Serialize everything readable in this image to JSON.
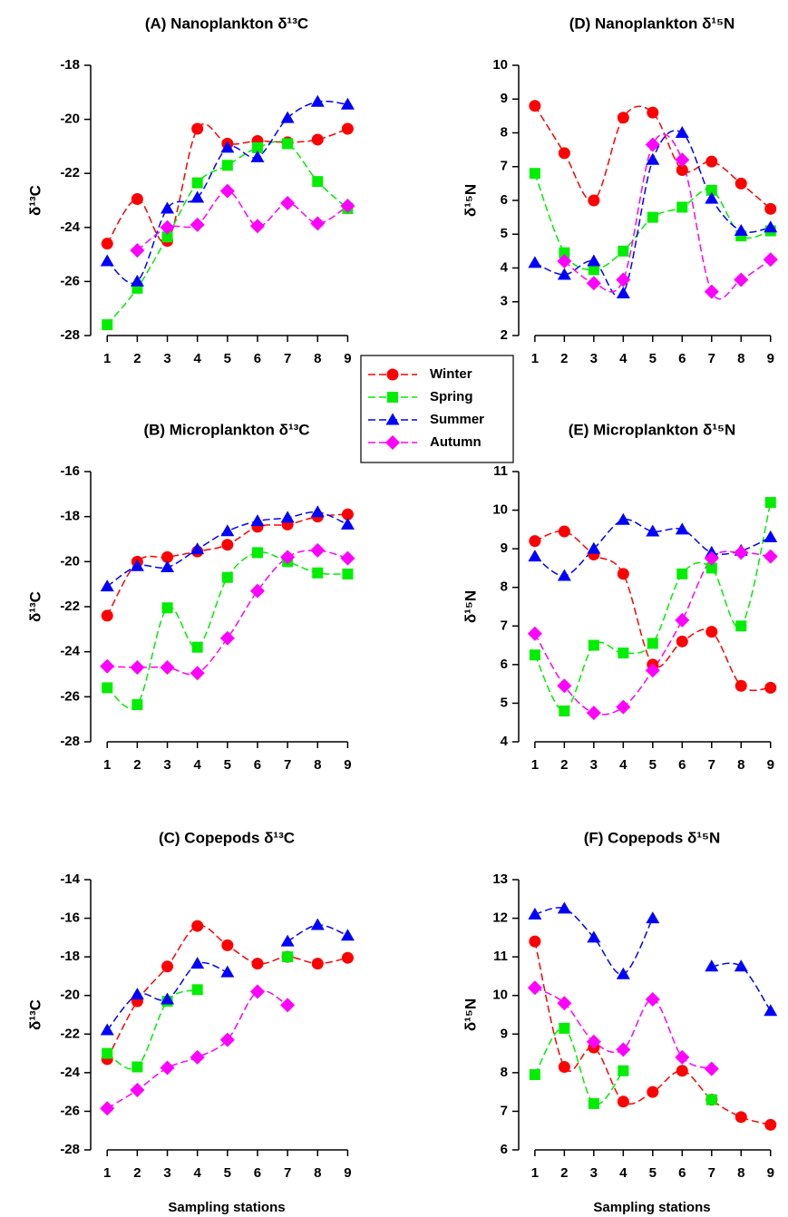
{
  "chart_data": [
    {
      "type": "line",
      "title": "(A) Nanoplankton δ¹³C",
      "ylabel": "δ¹³C",
      "x": [
        1,
        2,
        3,
        4,
        5,
        6,
        7,
        8,
        9
      ],
      "xlim": [
        0.45,
        9.5
      ],
      "xticks": [
        1,
        2,
        3,
        4,
        5,
        6,
        7,
        8,
        9
      ],
      "ylim": [
        -28,
        -18
      ],
      "yticks": [
        -28,
        -26,
        -24,
        -22,
        -20,
        -18
      ],
      "series": [
        {
          "name": "Winter",
          "color": "#ff0000",
          "values": [
            -24.6,
            -22.95,
            -24.5,
            -20.35,
            -20.9,
            -20.8,
            -20.85,
            -20.75,
            -20.35
          ]
        },
        {
          "name": "Spring",
          "color": "#00ee00",
          "values": [
            -27.6,
            -26.25,
            -24.35,
            -22.35,
            -21.7,
            -21.05,
            -20.9,
            -22.3,
            -23.3
          ]
        },
        {
          "name": "Summer",
          "color": "#0000ff",
          "values": [
            -25.25,
            -26.0,
            -23.3,
            -22.9,
            -21.05,
            -21.4,
            -19.95,
            -19.35,
            -19.45
          ]
        },
        {
          "name": "Autumn",
          "color": "#ff00ff",
          "values": [
            null,
            -24.85,
            -24.0,
            -23.9,
            -22.65,
            -23.95,
            -23.1,
            -23.85,
            -23.2
          ]
        }
      ]
    },
    {
      "type": "line",
      "title": "(B) Microplankton δ¹³C",
      "ylabel": "δ¹³C",
      "x": [
        1,
        2,
        3,
        4,
        5,
        6,
        7,
        8,
        9
      ],
      "xlim": [
        0.45,
        9.5
      ],
      "xticks": [
        1,
        2,
        3,
        4,
        5,
        6,
        7,
        8,
        9
      ],
      "ylim": [
        -28,
        -16
      ],
      "yticks": [
        -28,
        -26,
        -24,
        -22,
        -20,
        -18,
        -16
      ],
      "series": [
        {
          "name": "Winter",
          "color": "#ff0000",
          "values": [
            -22.4,
            -20.0,
            -19.8,
            -19.55,
            -19.25,
            -18.45,
            -18.35,
            -18.0,
            -17.9
          ]
        },
        {
          "name": "Spring",
          "color": "#00ee00",
          "values": [
            -25.6,
            -26.35,
            -22.05,
            -23.8,
            -20.7,
            -19.6,
            -20.0,
            -20.5,
            -20.55
          ]
        },
        {
          "name": "Summer",
          "color": "#0000ff",
          "values": [
            -21.1,
            -20.2,
            -20.25,
            -19.45,
            -18.65,
            -18.2,
            -18.05,
            -17.8,
            -18.35
          ]
        },
        {
          "name": "Autumn",
          "color": "#ff00ff",
          "values": [
            -24.65,
            -24.7,
            -24.7,
            -24.95,
            -23.4,
            -21.3,
            -19.8,
            -19.5,
            -19.85
          ]
        }
      ]
    },
    {
      "type": "line",
      "title": "(C) Copepods δ¹³C",
      "ylabel": "δ¹³C",
      "xlabel": "Sampling stations",
      "x": [
        1,
        2,
        3,
        4,
        5,
        6,
        7,
        8,
        9
      ],
      "xlim": [
        0.45,
        9.5
      ],
      "xticks": [
        1,
        2,
        3,
        4,
        5,
        6,
        7,
        8,
        9
      ],
      "ylim": [
        -28,
        -14
      ],
      "yticks": [
        -28,
        -26,
        -24,
        -22,
        -20,
        -18,
        -16,
        -14
      ],
      "series": [
        {
          "name": "Winter",
          "color": "#ff0000",
          "values": [
            -23.3,
            -20.3,
            -18.5,
            -16.4,
            -17.4,
            -18.35,
            -18.0,
            -18.35,
            -18.05
          ]
        },
        {
          "name": "Spring",
          "color": "#00ee00",
          "values": [
            -23.0,
            -23.7,
            -20.3,
            -19.7,
            null,
            null,
            -18.0,
            null,
            null
          ]
        },
        {
          "name": "Summer",
          "color": "#0000ff",
          "values": [
            -21.8,
            -19.95,
            -20.2,
            -18.35,
            -18.8,
            null,
            -17.2,
            -16.35,
            -16.9
          ]
        },
        {
          "name": "Autumn",
          "color": "#ff00ff",
          "values": [
            -25.85,
            -24.9,
            -23.75,
            -23.2,
            -22.3,
            -19.8,
            -20.5,
            null,
            null
          ]
        }
      ]
    },
    {
      "type": "line",
      "title": "(D) Nanoplankton δ¹⁵N",
      "ylabel": "δ¹⁵N",
      "x": [
        1,
        2,
        3,
        4,
        5,
        6,
        7,
        8,
        9
      ],
      "xlim": [
        0.45,
        9.5
      ],
      "xticks": [
        1,
        2,
        3,
        4,
        5,
        6,
        7,
        8,
        9
      ],
      "ylim": [
        2,
        10
      ],
      "yticks": [
        2,
        3,
        4,
        5,
        6,
        7,
        8,
        9,
        10
      ],
      "series": [
        {
          "name": "Winter",
          "color": "#ff0000",
          "values": [
            8.8,
            7.4,
            6.0,
            8.45,
            8.6,
            6.9,
            7.15,
            6.5,
            5.75
          ]
        },
        {
          "name": "Spring",
          "color": "#00ee00",
          "values": [
            6.8,
            4.45,
            3.95,
            4.5,
            5.5,
            5.8,
            6.3,
            4.95,
            5.1
          ]
        },
        {
          "name": "Summer",
          "color": "#0000ff",
          "values": [
            4.15,
            3.8,
            4.2,
            3.25,
            7.2,
            8.0,
            6.05,
            5.1,
            5.2
          ]
        },
        {
          "name": "Autumn",
          "color": "#ff00ff",
          "values": [
            null,
            4.2,
            3.55,
            3.65,
            7.65,
            7.2,
            3.3,
            3.65,
            4.25
          ]
        }
      ]
    },
    {
      "type": "line",
      "title": "(E) Microplankton δ¹⁵N",
      "ylabel": "δ¹⁵N",
      "x": [
        1,
        2,
        3,
        4,
        5,
        6,
        7,
        8,
        9
      ],
      "xlim": [
        0.45,
        9.5
      ],
      "xticks": [
        1,
        2,
        3,
        4,
        5,
        6,
        7,
        8,
        9
      ],
      "ylim": [
        4,
        11
      ],
      "yticks": [
        4,
        5,
        6,
        7,
        8,
        9,
        10,
        11
      ],
      "series": [
        {
          "name": "Winter",
          "color": "#ff0000",
          "values": [
            9.2,
            9.45,
            8.85,
            8.35,
            6.0,
            6.6,
            6.85,
            5.45,
            5.4
          ]
        },
        {
          "name": "Spring",
          "color": "#00ee00",
          "values": [
            6.25,
            4.8,
            6.5,
            6.3,
            6.55,
            8.35,
            8.5,
            7.0,
            10.2
          ]
        },
        {
          "name": "Summer",
          "color": "#0000ff",
          "values": [
            8.8,
            8.3,
            9.0,
            9.75,
            9.45,
            9.5,
            8.9,
            8.95,
            9.3
          ]
        },
        {
          "name": "Autumn",
          "color": "#ff00ff",
          "values": [
            6.8,
            5.45,
            4.75,
            4.9,
            5.85,
            7.15,
            8.75,
            8.9,
            8.8
          ]
        }
      ]
    },
    {
      "type": "line",
      "title": "(F) Copepods δ¹⁵N",
      "ylabel": "δ¹⁵N",
      "xlabel": "Sampling stations",
      "x": [
        1,
        2,
        3,
        4,
        5,
        6,
        7,
        8,
        9
      ],
      "xlim": [
        0.45,
        9.5
      ],
      "xticks": [
        1,
        2,
        3,
        4,
        5,
        6,
        7,
        8,
        9
      ],
      "ylim": [
        6,
        13
      ],
      "yticks": [
        6,
        7,
        8,
        9,
        10,
        11,
        12,
        13
      ],
      "series": [
        {
          "name": "Winter",
          "color": "#ff0000",
          "values": [
            11.4,
            8.15,
            8.65,
            7.25,
            7.5,
            8.05,
            7.3,
            6.85,
            6.65
          ]
        },
        {
          "name": "Spring",
          "color": "#00ee00",
          "values": [
            7.95,
            9.15,
            7.2,
            8.05,
            null,
            null,
            7.3,
            null,
            null
          ]
        },
        {
          "name": "Summer",
          "color": "#0000ff",
          "values": [
            12.1,
            12.25,
            11.5,
            10.55,
            12.0,
            null,
            10.75,
            10.75,
            9.6
          ]
        },
        {
          "name": "Autumn",
          "color": "#ff00ff",
          "values": [
            10.2,
            9.8,
            8.8,
            8.6,
            9.9,
            8.4,
            8.1,
            null,
            null
          ]
        }
      ]
    }
  ]
}
